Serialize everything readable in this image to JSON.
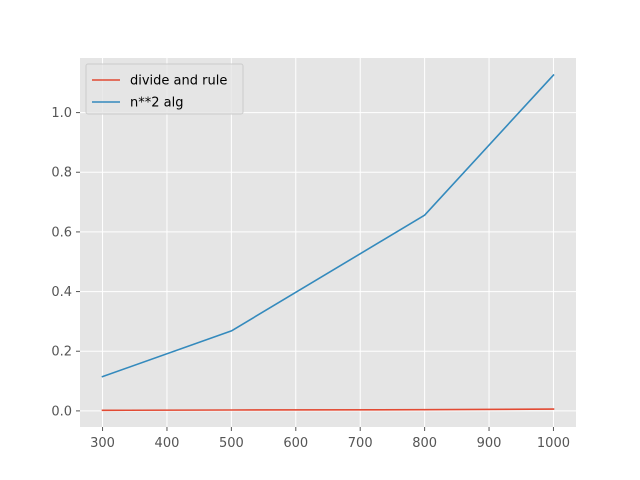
{
  "chart_data": {
    "type": "line",
    "title": "",
    "xlabel": "",
    "ylabel": "",
    "x": [
      300,
      500,
      800,
      1000
    ],
    "series": [
      {
        "name": "divide and rule",
        "color": "#E24A33",
        "values": [
          0.002,
          0.003,
          0.004,
          0.006
        ]
      },
      {
        "name": "n**2 alg",
        "color": "#348ABD",
        "values": [
          0.115,
          0.268,
          0.656,
          1.126
        ]
      }
    ],
    "xlim": [
      265,
      1035
    ],
    "ylim": [
      -0.054,
      1.183
    ],
    "xticks": [
      300,
      400,
      500,
      600,
      700,
      800,
      900,
      1000
    ],
    "xtick_labels": [
      "300",
      "400",
      "500",
      "600",
      "700",
      "800",
      "900",
      "1000"
    ],
    "yticks": [
      0.0,
      0.2,
      0.4,
      0.6,
      0.8,
      1.0
    ],
    "ytick_labels": [
      "0.0",
      "0.2",
      "0.4",
      "0.6",
      "0.8",
      "1.0"
    ],
    "grid": true,
    "legend_position": "upper-left",
    "style": {
      "plot_bg": "#E5E5E5",
      "grid_color": "#FFFFFF"
    }
  }
}
